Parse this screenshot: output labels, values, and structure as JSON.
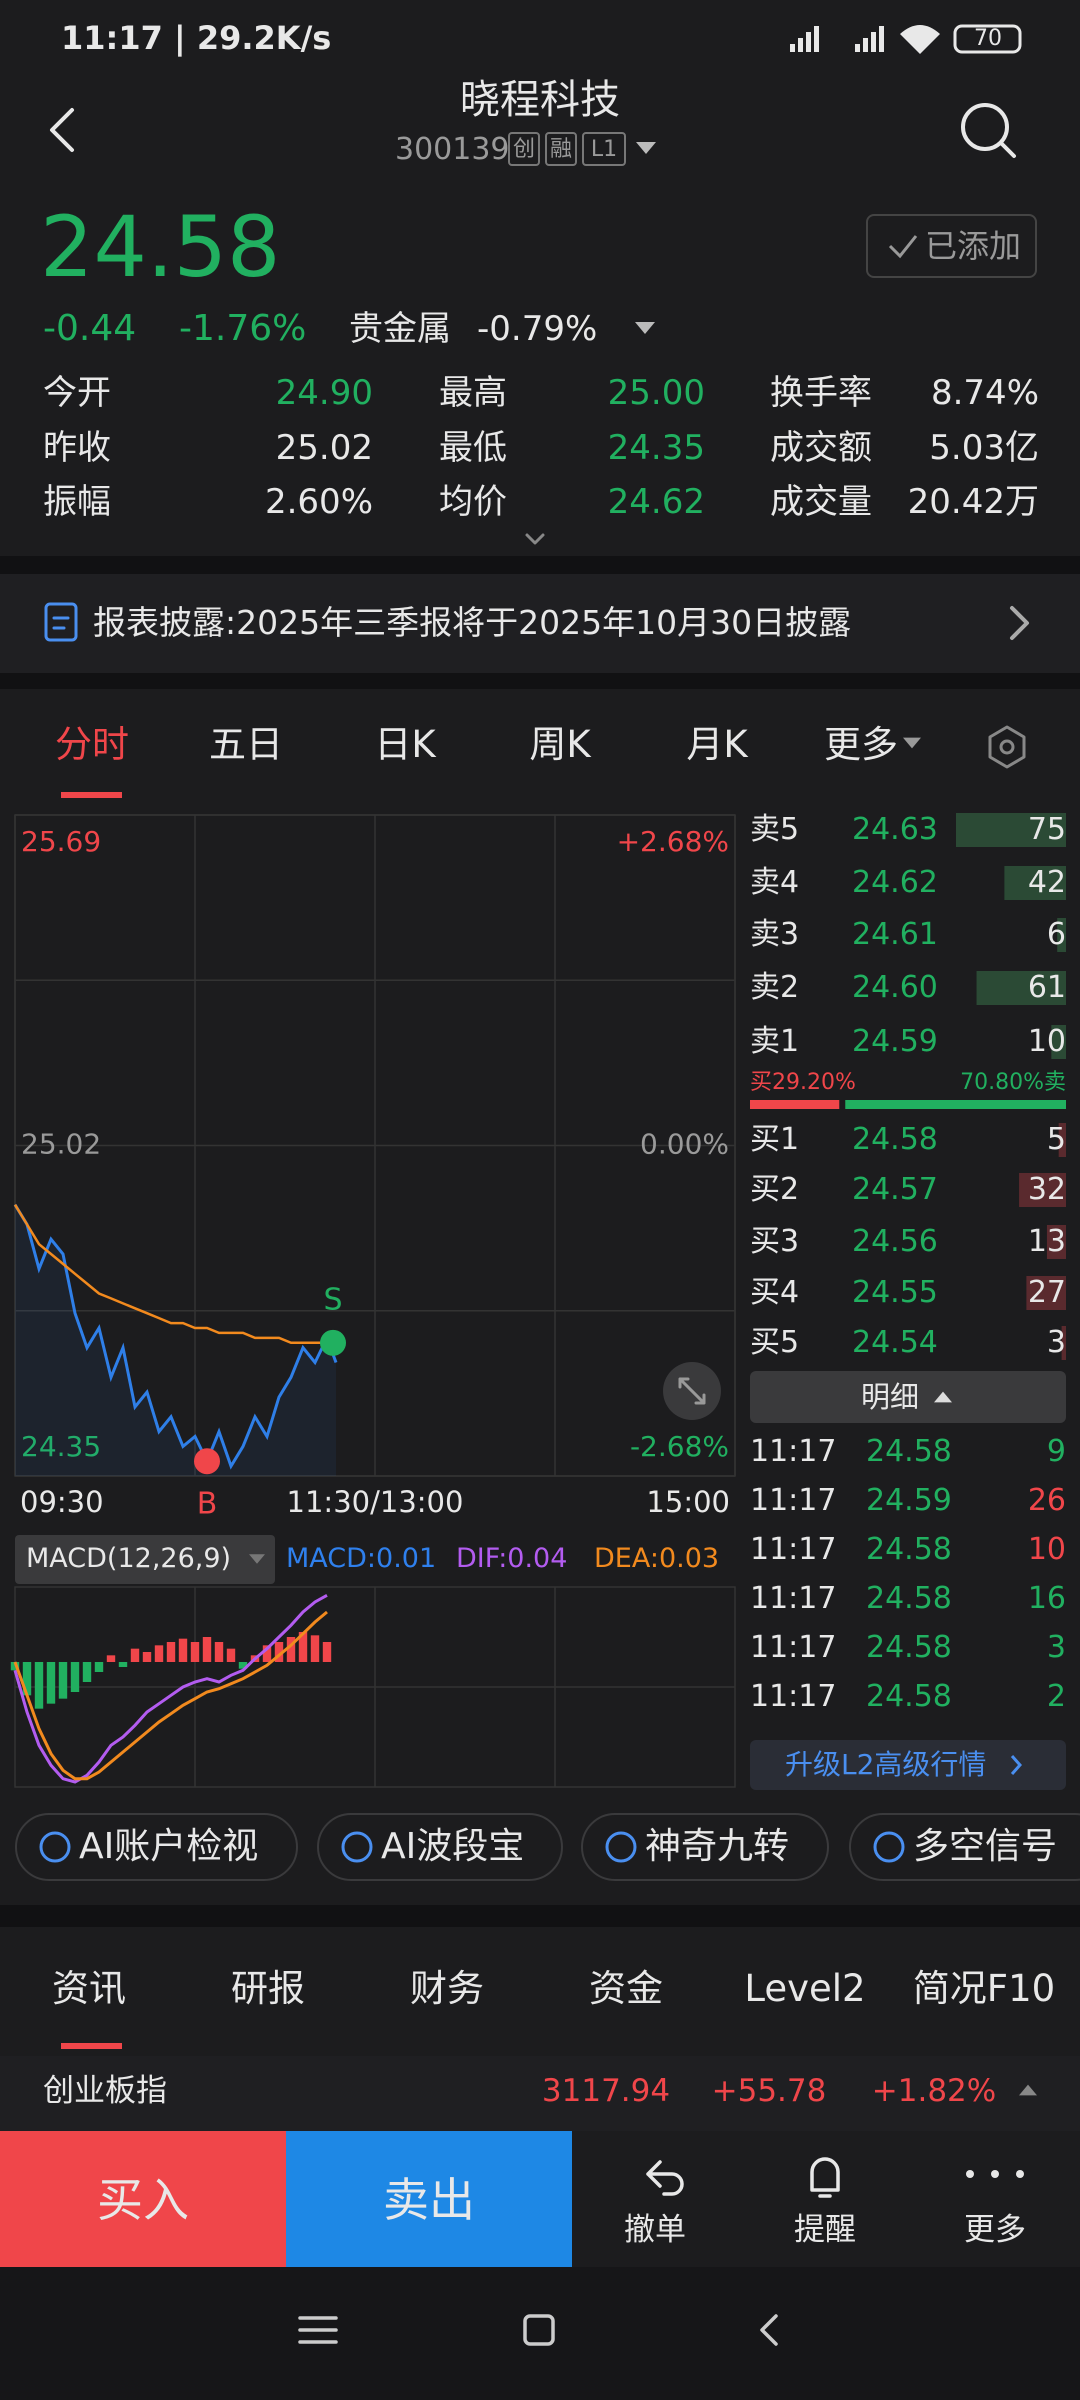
{
  "status_bar": {
    "time": "11:17 | 29.2K/s",
    "battery": "70"
  },
  "header": {
    "title": "晓程科技",
    "code": "300139",
    "badges": [
      "创",
      "融",
      "L1"
    ],
    "watch_button": "已添加"
  },
  "quote": {
    "price": "24.58",
    "change": "-0.44",
    "change_pct": "-1.76%",
    "sector": "贵金属",
    "sector_change": "-0.79%",
    "stats": [
      {
        "label": "今开",
        "value": "24.90",
        "color": "green"
      },
      {
        "label": "最高",
        "value": "25.00",
        "color": "green"
      },
      {
        "label": "换手率",
        "value": "8.74%",
        "color": "white"
      },
      {
        "label": "昨收",
        "value": "25.02",
        "color": "white"
      },
      {
        "label": "最低",
        "value": "24.35",
        "color": "green"
      },
      {
        "label": "成交额",
        "value": "5.03亿",
        "color": "white"
      },
      {
        "label": "振幅",
        "value": "2.60%",
        "color": "white"
      },
      {
        "label": "均价",
        "value": "24.62",
        "color": "green"
      },
      {
        "label": "成交量",
        "value": "20.42万",
        "color": "white"
      }
    ]
  },
  "notice": "报表披露:2025年三季报将于2025年10月30日披露",
  "chart_tabs": [
    "分时",
    "五日",
    "日K",
    "周K",
    "月K",
    "更多"
  ],
  "chart_data": [
    {
      "type": "line",
      "x": [
        0,
        4,
        8,
        12,
        16,
        20,
        24,
        28,
        32,
        36,
        40,
        44,
        48,
        52,
        56,
        60,
        64,
        68,
        72,
        76,
        80,
        84,
        88,
        92,
        96,
        100,
        104,
        107
      ],
      "series": [
        {
          "color": "#2f7fe8",
          "values": [
            24.9,
            24.86,
            24.77,
            24.83,
            24.8,
            24.68,
            24.61,
            24.65,
            24.55,
            24.61,
            24.49,
            24.52,
            24.44,
            24.47,
            24.41,
            24.43,
            24.38,
            24.44,
            24.37,
            24.41,
            24.47,
            24.43,
            24.51,
            24.55,
            24.61,
            24.58,
            24.63,
            24.58
          ]
        },
        {
          "color": "#f28a1e",
          "values": [
            24.9,
            24.86,
            24.82,
            24.8,
            24.78,
            24.76,
            24.74,
            24.72,
            24.71,
            24.7,
            24.69,
            24.68,
            24.67,
            24.66,
            24.66,
            24.65,
            24.65,
            24.64,
            24.64,
            24.64,
            24.63,
            24.63,
            24.63,
            24.62,
            24.62,
            24.62,
            24.62,
            24.62
          ]
        }
      ],
      "xlim": [
        0,
        240
      ],
      "xticks": [
        {
          "value": 0,
          "label": "09:30"
        },
        {
          "value": 120,
          "label": "11:30/13:00"
        },
        {
          "value": 240,
          "label": "15:00"
        }
      ],
      "ylim": [
        24.35,
        25.69
      ],
      "yticks": [
        25.69,
        25.02,
        24.35
      ],
      "y2lim": [
        -2.68,
        2.68
      ],
      "y2ticks": [
        {
          "value": 2.68,
          "label": "+2.68%"
        },
        {
          "value": 0,
          "label": "0.00%"
        },
        {
          "value": -2.68,
          "label": "-2.68%"
        }
      ],
      "signals": [
        {
          "label": "B",
          "x": 64,
          "value": 24.38,
          "color": "#f0464a"
        },
        {
          "label": "S",
          "x": 106,
          "value": 24.62,
          "color": "#21b060"
        }
      ]
    },
    {
      "type": "macd",
      "title": "MACD(12,26,9)",
      "x": [
        0,
        4,
        8,
        12,
        16,
        20,
        24,
        28,
        32,
        36,
        40,
        44,
        48,
        52,
        56,
        60,
        64,
        68,
        72,
        76,
        80,
        84,
        88,
        92,
        96,
        100,
        104
      ],
      "xlim": [
        0,
        240
      ],
      "ylim": [
        -0.075,
        0.045
      ],
      "up_color": "#f0464a",
      "down_color": "#21b060",
      "series": [
        {
          "name": "MACD:0.01",
          "type": "bar",
          "color": "#2f80ed",
          "values": [
            -0.005,
            -0.02,
            -0.028,
            -0.025,
            -0.022,
            -0.018,
            -0.012,
            -0.006,
            0.004,
            -0.003,
            0.008,
            0.006,
            0.01,
            0.012,
            0.014,
            0.012,
            0.015,
            0.012,
            0.008,
            -0.004,
            0.004,
            0.01,
            0.012,
            0.015,
            0.018,
            0.016,
            0.012
          ]
        },
        {
          "name": "DIF:0.04",
          "type": "line",
          "color": "#b35cf0",
          "values": [
            -0.005,
            -0.03,
            -0.05,
            -0.062,
            -0.07,
            -0.072,
            -0.068,
            -0.06,
            -0.05,
            -0.045,
            -0.038,
            -0.03,
            -0.025,
            -0.02,
            -0.015,
            -0.012,
            -0.01,
            -0.012,
            -0.008,
            -0.005,
            0.002,
            0.008,
            0.015,
            0.022,
            0.03,
            0.036,
            0.04
          ]
        },
        {
          "name": "DEA:0.03",
          "type": "line",
          "color": "#f28a1e",
          "values": [
            0,
            -0.02,
            -0.04,
            -0.055,
            -0.065,
            -0.07,
            -0.07,
            -0.066,
            -0.06,
            -0.054,
            -0.048,
            -0.042,
            -0.036,
            -0.031,
            -0.026,
            -0.022,
            -0.018,
            -0.016,
            -0.013,
            -0.01,
            -0.006,
            -0.002,
            0.004,
            0.01,
            0.017,
            0.024,
            0.03
          ]
        }
      ]
    }
  ],
  "order_book": {
    "asks": [
      {
        "label": "卖5",
        "price": "24.63",
        "volume": 75
      },
      {
        "label": "卖4",
        "price": "24.62",
        "volume": 42
      },
      {
        "label": "卖3",
        "price": "24.61",
        "volume": 6
      },
      {
        "label": "卖2",
        "price": "24.60",
        "volume": 61
      },
      {
        "label": "卖1",
        "price": "24.59",
        "volume": 10
      }
    ],
    "ratio": {
      "values": [
        29.2,
        70.8
      ],
      "value_labels": [
        "买29.20%",
        "70.80%卖"
      ]
    },
    "bids": [
      {
        "label": "买1",
        "price": "24.58",
        "volume": 5
      },
      {
        "label": "买2",
        "price": "24.57",
        "volume": 32
      },
      {
        "label": "买3",
        "price": "24.56",
        "volume": 13
      },
      {
        "label": "买4",
        "price": "24.55",
        "volume": 27
      },
      {
        "label": "买5",
        "price": "24.54",
        "volume": 3
      }
    ],
    "detail_button": "明细",
    "trades": [
      {
        "time": "11:17",
        "price": "24.58",
        "volume": 9,
        "color": "green"
      },
      {
        "time": "11:17",
        "price": "24.59",
        "volume": 26,
        "color": "red"
      },
      {
        "time": "11:17",
        "price": "24.58",
        "volume": 10,
        "color": "red"
      },
      {
        "time": "11:17",
        "price": "24.58",
        "volume": 16,
        "color": "green"
      },
      {
        "time": "11:17",
        "price": "24.58",
        "volume": 3,
        "color": "green"
      },
      {
        "time": "11:17",
        "price": "24.58",
        "volume": 2,
        "color": "green"
      }
    ],
    "upgrade_button": "升级L2高级行情"
  },
  "ai_tools": [
    "AI账户检视",
    "AI波段宝",
    "神奇九转",
    "多空信号"
  ],
  "news_tabs": [
    "资讯",
    "研报",
    "财务",
    "资金",
    "Level2",
    "简况F10"
  ],
  "index_ticker": {
    "name": "创业板指",
    "value": "3117.94",
    "change": "+55.78",
    "change_pct": "+1.82%"
  },
  "actions": {
    "buy": "买入",
    "sell": "卖出",
    "cancel": "撤单",
    "alert": "提醒",
    "more": "更多"
  }
}
